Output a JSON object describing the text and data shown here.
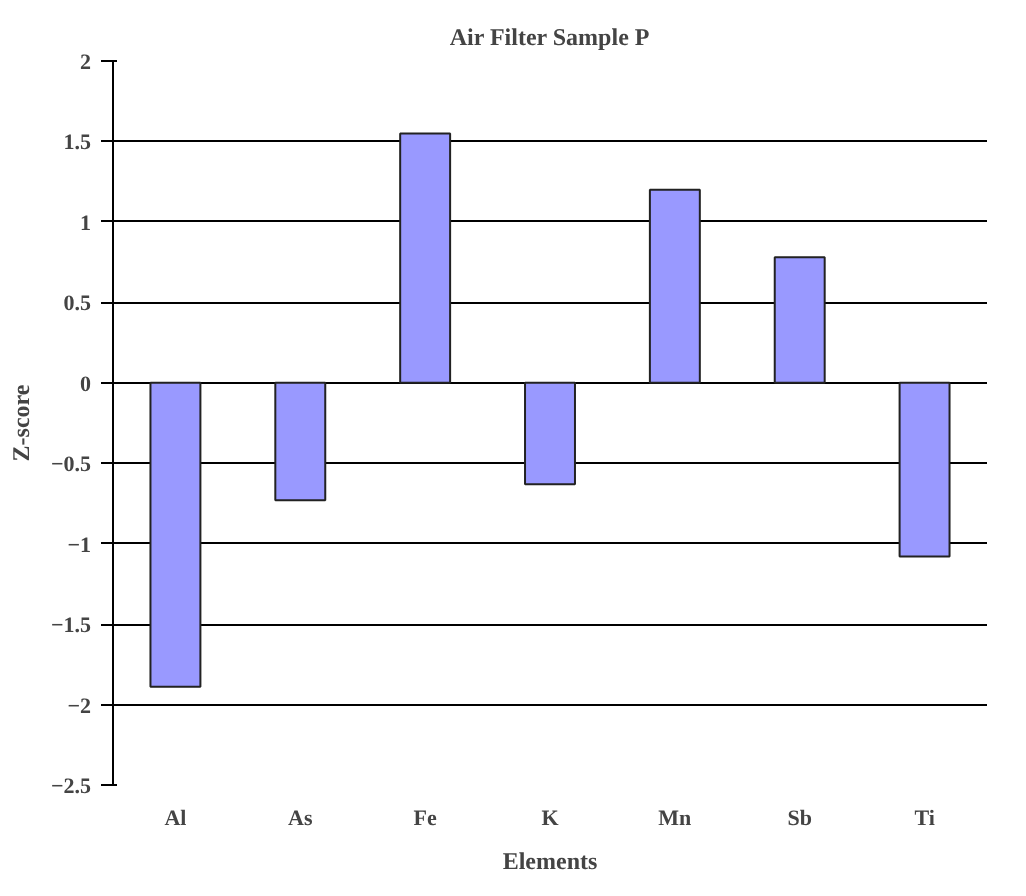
{
  "chart_data": {
    "type": "bar",
    "title": "Air Filter Sample P",
    "xlabel": "Elements",
    "ylabel": "Z-score",
    "categories": [
      "Al",
      "As",
      "Fe",
      "K",
      "Mn",
      "Sb",
      "Ti"
    ],
    "values": [
      -1.89,
      -0.73,
      1.55,
      -0.63,
      1.2,
      0.78,
      -1.08
    ],
    "color": "#9999ff",
    "ylim": [
      -2.5,
      2
    ],
    "yticks": [
      -2.5,
      -2,
      -1.5,
      -1,
      -0.5,
      0,
      0.5,
      1,
      1.5,
      2
    ],
    "grid": "y"
  }
}
